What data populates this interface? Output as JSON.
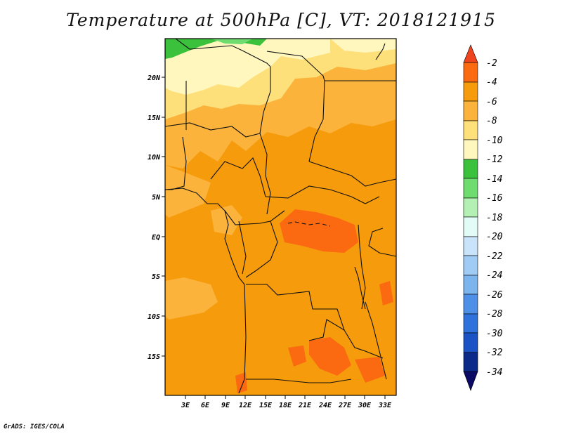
{
  "title": "Temperature at 500hPa [C], VT: 2018121915",
  "credit": "GrADS: IGES/COLA",
  "map": {
    "lat_labels": [
      "20N",
      "15N",
      "10N",
      "5N",
      "EQ",
      "5S",
      "10S",
      "15S"
    ],
    "lon_labels": [
      "3E",
      "6E",
      "9E",
      "12E",
      "15E",
      "18E",
      "21E",
      "24E",
      "27E",
      "30E",
      "33E"
    ]
  },
  "colorbar": {
    "labels": [
      "-2",
      "-4",
      "-6",
      "-8",
      "-10",
      "-12",
      "-14",
      "-16",
      "-18",
      "-20",
      "-22",
      "-24",
      "-26",
      "-28",
      "-30",
      "-32",
      "-34"
    ],
    "colors": {
      "gt_-2": "#f0441e",
      "-4_-2": "#fb6a10",
      "-6_-4": "#f59b0c",
      "-8_-6": "#fbb33b",
      "-10_-8": "#fde07a",
      "-12_-10": "#fff7bd",
      "-14_-12": "#3cc13c",
      "-16_-14": "#6edc6e",
      "-18_-16": "#b4f0b4",
      "-20_-18": "#e3fbf7",
      "-22_-20": "#c8e3fa",
      "-24_-22": "#a0cbf4",
      "-26_-24": "#7cb5ee",
      "-28_-26": "#4e90e8",
      "-30_-28": "#2f72dc",
      "-32_-30": "#1b52c4",
      "-34_-32": "#0b2a8a",
      "lt_-34": "#0a0a64"
    }
  }
}
